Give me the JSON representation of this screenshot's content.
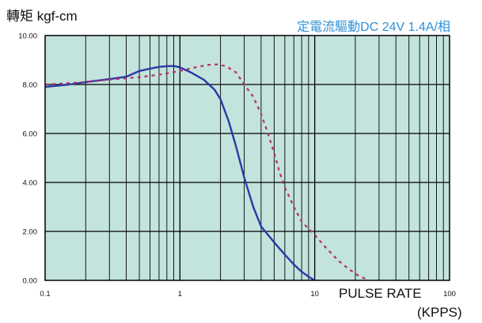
{
  "chart_data": {
    "type": "line",
    "ylabel": "轉矩 kgf-cm",
    "subtitle": "定電流驅動DC 24V 1.4A/相",
    "xlabel": "PULSE RATE",
    "xunit": "(KPPS)",
    "xscale": "log",
    "xlim": [
      0.1,
      100
    ],
    "ylim": [
      0,
      10
    ],
    "x_ticks": [
      "0.1",
      "1",
      "10",
      "100"
    ],
    "y_ticks": [
      "0.00",
      "2.00",
      "4.00",
      "6.00",
      "8.00",
      "10.00"
    ],
    "grid": true,
    "plot_background": "#c3e3dd",
    "series": [
      {
        "style": "solid",
        "color": "#2a3aa6",
        "x": [
          0.1,
          0.15,
          0.2,
          0.3,
          0.4,
          0.5,
          0.6,
          0.7,
          0.8,
          0.9,
          1.0,
          1.2,
          1.5,
          1.8,
          2.0,
          2.3,
          2.6,
          3.0,
          3.5,
          4.0,
          5.0,
          6.0,
          7.0,
          8.0,
          9.0,
          10.0
        ],
        "y": [
          7.9,
          8.0,
          8.1,
          8.22,
          8.32,
          8.55,
          8.65,
          8.72,
          8.75,
          8.76,
          8.7,
          8.5,
          8.2,
          7.8,
          7.4,
          6.5,
          5.5,
          4.2,
          3.0,
          2.2,
          1.55,
          1.05,
          0.65,
          0.35,
          0.15,
          0.0
        ]
      },
      {
        "style": "dashed",
        "color": "#b0306a",
        "x": [
          0.1,
          0.2,
          0.3,
          0.5,
          0.7,
          1.0,
          1.3,
          1.6,
          1.9,
          2.2,
          2.6,
          3.0,
          3.5,
          4.0,
          4.5,
          5.0,
          5.5,
          6.0,
          7.0,
          8.0,
          10.0,
          12.0,
          15.0,
          18.0,
          21.0,
          24.0
        ],
        "y": [
          8.0,
          8.1,
          8.2,
          8.3,
          8.4,
          8.55,
          8.7,
          8.8,
          8.82,
          8.75,
          8.5,
          8.0,
          7.5,
          6.8,
          6.0,
          5.2,
          4.4,
          3.8,
          3.0,
          2.4,
          1.85,
          1.35,
          0.8,
          0.45,
          0.2,
          0.05
        ]
      }
    ]
  }
}
